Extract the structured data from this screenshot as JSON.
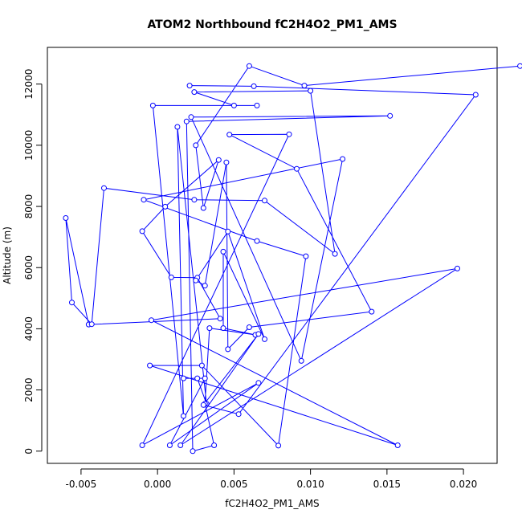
{
  "chart_data": {
    "type": "line",
    "title": "ATOM2 Northbound fC2H4O2_PM1_AMS",
    "xlabel": "fC2H4O2_PM1_AMS",
    "ylabel": "Altitude (m)",
    "xlim": [
      -0.0072,
      0.0222
    ],
    "ylim": [
      -400,
      13200
    ],
    "x_ticks": [
      -0.005,
      0.0,
      0.005,
      0.01,
      0.015,
      0.02
    ],
    "x_tick_labels": [
      "-0.005",
      "0.000",
      "0.005",
      "0.010",
      "0.015",
      "0.020"
    ],
    "y_ticks": [
      0,
      2000,
      4000,
      6000,
      8000,
      10000,
      12000
    ],
    "y_tick_labels": [
      "0",
      "2000",
      "4000",
      "6000",
      "8000",
      "10000",
      "12000"
    ],
    "grid": false,
    "series": [
      {
        "color": "#0000ff",
        "marker": "open-circle",
        "points": [
          [
            0.0237,
            12590
          ],
          [
            0.0096,
            11950
          ],
          [
            0.006,
            12590
          ],
          [
            0.0025,
            10000
          ],
          [
            0.003,
            7950
          ],
          [
            0.004,
            9520
          ],
          [
            0.0005,
            7990
          ],
          [
            -0.001,
            7190
          ],
          [
            0.0009,
            5680
          ],
          [
            0.0026,
            5670
          ],
          [
            0.0041,
            4330
          ],
          [
            -0.0045,
            4140
          ],
          [
            -0.006,
            7620
          ],
          [
            -0.0056,
            4860
          ],
          [
            -0.0043,
            4150
          ],
          [
            -0.0035,
            8600
          ],
          [
            0.0024,
            8220
          ],
          [
            0.007,
            8190
          ],
          [
            0.0116,
            6450
          ],
          [
            0.01,
            11780
          ],
          [
            0.0024,
            11740
          ],
          [
            0.005,
            11300
          ],
          [
            0.0065,
            11300
          ],
          [
            -0.0003,
            11300
          ],
          [
            0.0017,
            1150
          ],
          [
            0.0013,
            10600
          ],
          [
            0.0032,
            1550
          ],
          [
            0.0026,
            2380
          ],
          [
            0.0017,
            2380
          ],
          [
            0.0031,
            2380
          ],
          [
            0.0008,
            190
          ],
          [
            0.0066,
            2230
          ],
          [
            -0.001,
            190
          ],
          [
            0.0086,
            10360
          ],
          [
            0.0047,
            10350
          ],
          [
            0.0091,
            9230
          ],
          [
            0.014,
            4560
          ],
          [
            0.006,
            4050
          ],
          [
            0.0046,
            3330
          ],
          [
            0.0045,
            9440
          ],
          [
            0.0031,
            5410
          ],
          [
            0.0025,
            5580
          ],
          [
            0.0046,
            7180
          ],
          [
            0.007,
            3660
          ],
          [
            0.0043,
            6520
          ],
          [
            0.0043,
            4020
          ],
          [
            0.0064,
            3800
          ],
          [
            0.0034,
            4020
          ],
          [
            0.0031,
            1550
          ],
          [
            0.0037,
            190
          ],
          [
            0.0023,
            0
          ],
          [
            0.0019,
            10780
          ],
          [
            0.0152,
            10960
          ],
          [
            0.0022,
            10920
          ],
          [
            0.0094,
            2950
          ],
          [
            0.0121,
            9550
          ],
          [
            -0.0009,
            8220
          ],
          [
            0.0065,
            6870
          ],
          [
            0.0097,
            6370
          ],
          [
            0.0079,
            180
          ],
          [
            0.0029,
            2800
          ],
          [
            -0.0005,
            2800
          ],
          [
            0.0157,
            190
          ],
          [
            -0.0004,
            4280
          ],
          [
            0.0196,
            5970
          ],
          [
            0.0015,
            190
          ],
          [
            0.0066,
            3830
          ],
          [
            0.003,
            1510
          ],
          [
            0.0053,
            1210
          ],
          [
            0.0208,
            11650
          ],
          [
            0.0063,
            11930
          ],
          [
            0.0021,
            11950
          ]
        ]
      }
    ]
  }
}
